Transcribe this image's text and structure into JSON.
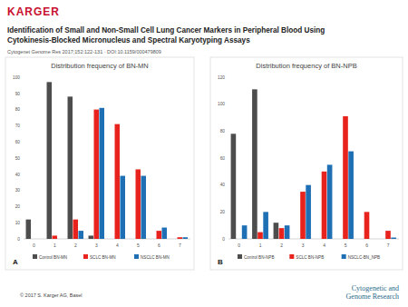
{
  "publisher": "KARGER",
  "title": [
    "Identification of Small and Non-Small Cell Lung Cancer Markers in Peripheral Blood Using",
    "Cytokinesis-Blocked Micronucleus and Spectral Karyotyping Assays"
  ],
  "citation": "Cytogenet Genome Res 2017;152:122-131 · DOI:10.1159/000479809",
  "copyright": "© 2017 S. Karger AG, Basel",
  "journal": [
    "Cytogenetic and",
    "Genome Research"
  ],
  "chart_data": [
    {
      "type": "bar",
      "title": "Distribution frequency of BN-MN",
      "categories": [
        "0",
        "1",
        "2",
        "3",
        "4",
        "5",
        "6",
        "7"
      ],
      "series": [
        {
          "name": "Control BN-MN",
          "color": "#4d4d4d",
          "values": [
            12,
            97,
            88,
            2,
            0,
            0,
            0,
            0
          ]
        },
        {
          "name": "SCLC BN-MN",
          "color": "#e8231d",
          "values": [
            0,
            2,
            12,
            80,
            71,
            43,
            5,
            1
          ]
        },
        {
          "name": "NSCLC BN-MN",
          "color": "#1f6fb5",
          "values": [
            0,
            0,
            5,
            81,
            39,
            39,
            7,
            1
          ]
        }
      ],
      "ylim": [
        0,
        100
      ],
      "yticks": [
        0,
        10,
        20,
        30,
        40,
        50,
        60,
        70,
        80,
        90,
        100
      ],
      "grid": false,
      "legend": "bottom",
      "annotations": [
        "A"
      ]
    },
    {
      "type": "bar",
      "title": "Distribution frequency of BN-NPB",
      "categories": [
        "0",
        "1",
        "2",
        "3",
        "4",
        "5",
        "6",
        "7"
      ],
      "series": [
        {
          "name": "Control BN-NPB",
          "color": "#4d4d4d",
          "values": [
            78,
            111,
            12,
            0,
            0,
            0,
            0,
            0
          ]
        },
        {
          "name": "SCLC BN-NPB",
          "color": "#e8231d",
          "values": [
            0,
            5,
            8,
            35,
            50,
            91,
            20,
            6
          ]
        },
        {
          "name": "NSCLC-BN_NPB",
          "color": "#1f6fb5",
          "values": [
            10,
            20,
            10,
            40,
            55,
            65,
            0,
            1
          ]
        }
      ],
      "ylim": [
        0,
        120
      ],
      "yticks": [
        0,
        20,
        40,
        60,
        80,
        100,
        120
      ],
      "grid": false,
      "legend": "bottom",
      "annotations": [
        "B"
      ]
    }
  ]
}
